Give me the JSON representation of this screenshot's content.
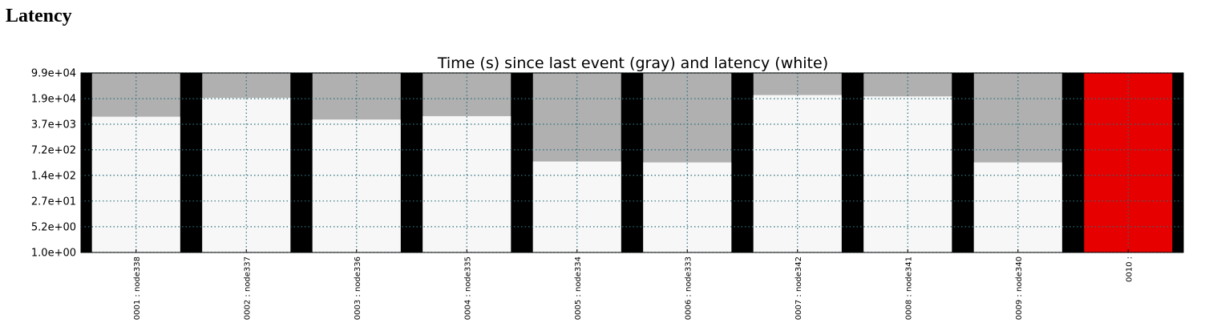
{
  "page": {
    "heading": "Latency"
  },
  "chart_data": {
    "type": "bar",
    "title": "Time (s) since last event (gray) and latency (white)",
    "xlabel": "",
    "ylabel": "",
    "yscale": "log",
    "ylim": [
      1.0,
      99000
    ],
    "yticks": [
      1.0,
      5.2,
      27,
      140,
      720,
      3700,
      19000,
      99000
    ],
    "ytick_labels": [
      "1.0e+00",
      "5.2e+00",
      "2.7e+01",
      "1.4e+02",
      "7.2e+02",
      "3.7e+03",
      "1.9e+04",
      "9.9e+04"
    ],
    "grid": true,
    "categories": [
      "0001 : node338",
      "0002 : node337",
      "0003 : node336",
      "0004 : node335",
      "0005 : node334",
      "0006 : node333",
      "0007 : node342",
      "0008 : node341",
      "0009 : node340",
      "0010 :"
    ],
    "series": [
      {
        "name": "time since last event",
        "color": "#b0b0b0",
        "values": [
          99000,
          99000,
          99000,
          99000,
          99000,
          99000,
          99000,
          99000,
          99000,
          99000
        ]
      },
      {
        "name": "latency",
        "color": "#f7f7f7",
        "values": [
          6000,
          20000,
          5000,
          6200,
          340,
          320,
          24000,
          22000,
          320,
          null
        ]
      }
    ],
    "status_colors": [
      "#f7f7f7",
      "#f7f7f7",
      "#f7f7f7",
      "#f7f7f7",
      "#f7f7f7",
      "#f7f7f7",
      "#f7f7f7",
      "#f7f7f7",
      "#f7f7f7",
      "#e60000"
    ]
  }
}
